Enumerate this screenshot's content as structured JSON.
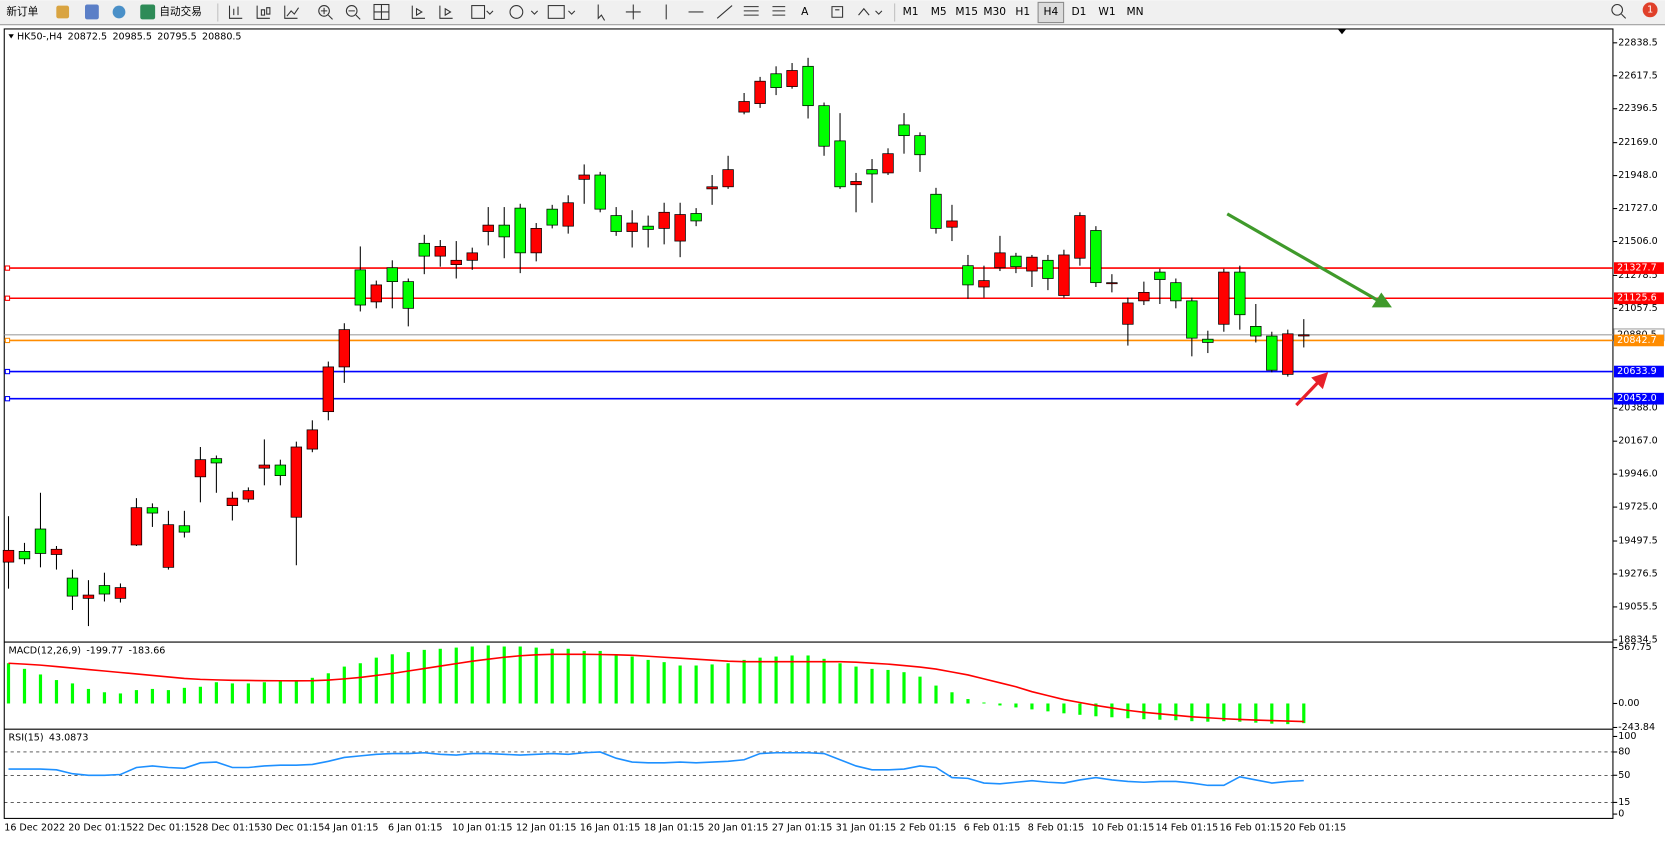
{
  "toolbar": {
    "new_order": "新订单",
    "auto_trading": "自动交易",
    "timeframes": [
      "M1",
      "M5",
      "M15",
      "M30",
      "H1",
      "H4",
      "D1",
      "W1",
      "MN"
    ],
    "active_timeframe": "H4",
    "notifications": 1
  },
  "chart_data": [
    {
      "type": "candlestick",
      "title": "HK50-,H4",
      "x": [
        "16 Dec 2022",
        null,
        null,
        null,
        "20 Dec 01:15",
        null,
        null,
        null,
        "22 Dec 01:15",
        null,
        null,
        null,
        "28 Dec 01:15",
        null,
        null,
        null,
        "30 Dec 01:15",
        null,
        null,
        null,
        "4 Jan 01:15",
        null,
        null,
        null,
        "6 Jan 01:15",
        null,
        null,
        null,
        "10 Jan 01:15",
        null,
        null,
        null,
        "12 Jan 01:15",
        null,
        null,
        null,
        "16 Jan 01:15",
        null,
        null,
        null,
        "18 Jan 01:15",
        null,
        null,
        null,
        "20 Jan 01:15",
        null,
        null,
        null,
        "27 Jan 01:15",
        null,
        null,
        null,
        "31 Jan 01:15",
        null,
        null,
        null,
        "2 Feb 01:15",
        null,
        null,
        null,
        "6 Feb 01:15",
        null,
        null,
        null,
        "8 Feb 01:15",
        null,
        null,
        null,
        "10 Feb 01:15",
        null,
        null,
        null,
        "14 Feb 01:15",
        null,
        null,
        null,
        "16 Feb 01:15",
        null,
        null,
        null,
        "20 Feb 01:15",
        null
      ],
      "open": [
        19356,
        19428,
        19578,
        19407,
        19249,
        19113,
        19199,
        19113,
        19471,
        19721,
        19321,
        19600,
        19928,
        20050,
        19735,
        19778,
        19986,
        20007,
        19657,
        20114,
        20365,
        20665,
        21316,
        21101,
        21330,
        21237,
        21494,
        21408,
        21351,
        21380,
        21573,
        21616,
        21730,
        21430,
        21723,
        21609,
        21923,
        21952,
        21680,
        21573,
        21609,
        21594,
        21509,
        21694,
        21859,
        21873,
        22374,
        22431,
        22631,
        22545,
        22681,
        22417,
        22181,
        21887,
        21988,
        21966,
        22288,
        22216,
        21823,
        21602,
        21344,
        21201,
        21330,
        21408,
        21308,
        21380,
        21144,
        21394,
        21580,
        21223,
        20951,
        21108,
        21301,
        21230,
        21108,
        20851,
        20951,
        21301,
        20937,
        20872,
        20615,
        20872.5
      ],
      "high": [
        19664,
        19485,
        19821,
        19464,
        19306,
        19235,
        19285,
        19213,
        19785,
        19750,
        19700,
        19700,
        20128,
        20071,
        19828,
        19857,
        20179,
        20043,
        20164,
        20307,
        20701,
        20958,
        21473,
        21244,
        21380,
        21258,
        21551,
        21516,
        21509,
        21465,
        21737,
        21737,
        21759,
        21630,
        21752,
        21816,
        22023,
        21973,
        21737,
        21716,
        21680,
        21766,
        21766,
        21730,
        21952,
        22081,
        22502,
        22610,
        22681,
        22703,
        22738,
        22438,
        22367,
        21966,
        22059,
        22131,
        22367,
        22238,
        21866,
        21752,
        21416,
        21344,
        21544,
        21430,
        21416,
        21416,
        21451,
        21702,
        21609,
        21287,
        21130,
        21237,
        21323,
        21258,
        21130,
        20908,
        21323,
        21344,
        21087,
        20901,
        20915,
        20985.5
      ],
      "low": [
        19178,
        19342,
        19321,
        19306,
        19035,
        18927,
        19092,
        19085,
        19464,
        19592,
        19306,
        19521,
        19757,
        19821,
        19635,
        19757,
        19871,
        19871,
        19335,
        20093,
        20307,
        20558,
        21037,
        21058,
        21058,
        20937,
        21287,
        21337,
        21258,
        21316,
        21480,
        21394,
        21294,
        21373,
        21594,
        21559,
        21759,
        21702,
        21544,
        21466,
        21466,
        21487,
        21401,
        21609,
        21752,
        21859,
        22359,
        22402,
        22488,
        22531,
        22331,
        22081,
        21859,
        21702,
        21766,
        21952,
        22095,
        21973,
        21559,
        21509,
        21122,
        21130,
        21308,
        21294,
        21201,
        21180,
        21130,
        21344,
        21201,
        21165,
        20808,
        21080,
        21087,
        21058,
        20736,
        20758,
        20901,
        20915,
        20829,
        20629,
        20600,
        20795.5
      ],
      "close": [
        19435,
        19378,
        19414,
        19442,
        19128,
        19135,
        19142,
        19185,
        19721,
        19685,
        19607,
        19557,
        20043,
        20021,
        19785,
        19835,
        20007,
        19936,
        20128,
        20243,
        20665,
        20915,
        21080,
        21215,
        21237,
        21058,
        21408,
        21473,
        21380,
        21430,
        21616,
        21537,
        21430,
        21594,
        21616,
        21766,
        21952,
        21723,
        21573,
        21630,
        21587,
        21702,
        21687,
        21644,
        21873,
        21988,
        22445,
        22581,
        22538,
        22653,
        22417,
        22145,
        21873,
        21909,
        21959,
        22095,
        22216,
        22088,
        21594,
        21644,
        21215,
        21244,
        21430,
        21337,
        21401,
        21258,
        21416,
        21680,
        21230,
        21230,
        21094,
        21165,
        21251,
        21108,
        20858,
        20829,
        21301,
        21015,
        20872,
        20643,
        20887,
        20880.5
      ],
      "up_color": "#ff0000",
      "down_color": "#00ff00",
      "bid_color": "#a0a0a0",
      "ylim": [
        18820,
        22931.5
      ],
      "yticks": [
        22838.5,
        22617.5,
        22396.5,
        {
          "value": 22169,
          "label": "22169.0"
        },
        {
          "value": 21948,
          "label": "21948.0"
        },
        {
          "value": 21727,
          "label": "21727.0"
        },
        {
          "value": 21506,
          "label": "21506.0"
        },
        21278.5,
        21057.5,
        {
          "value": 20388,
          "label": "20388.0"
        },
        {
          "value": 20167,
          "label": "20167.0"
        },
        {
          "value": 19946,
          "label": "19946.0"
        },
        {
          "value": 19725,
          "label": "19725.0"
        },
        19497.5,
        19276.5,
        19055.5,
        18834.5
      ],
      "hlines": [
        {
          "value": 21327.7,
          "color": "#ff0000"
        },
        {
          "value": 21125.6,
          "color": "#ff0000"
        },
        {
          "value": 20842.7,
          "color": "#ff8c00"
        },
        {
          "value": 20633.9,
          "color": "#0000ff"
        },
        {
          "value": 20452,
          "label": "20452.0",
          "color": "#0000ff"
        }
      ]
    },
    {
      "type": "macd",
      "title": "MACD(12,26,9)",
      "values": [
        409,
        352,
        295,
        238,
        204,
        148,
        114,
        102,
        136,
        148,
        136,
        159,
        170,
        216,
        204,
        204,
        216,
        227,
        227,
        261,
        307,
        375,
        409,
        466,
        500,
        522,
        545,
        556,
        568,
        579,
        590,
        579,
        579,
        568,
        556,
        556,
        534,
        534,
        500,
        477,
        443,
        420,
        386,
        386,
        397,
        409,
        443,
        466,
        477,
        488,
        488,
        454,
        409,
        375,
        352,
        341,
        318,
        273,
        182,
        114,
        45,
        10,
        -20,
        -40,
        -60,
        -80,
        -100,
        -115,
        -130,
        -140,
        -150,
        -160,
        -165,
        -170,
        -180,
        -185,
        -180,
        -185,
        -195,
        -205,
        -210,
        -199.77
      ],
      "color": "#00ff00",
      "signal": [
        409,
        400,
        390,
        375,
        360,
        345,
        330,
        315,
        300,
        285,
        270,
        255,
        245,
        240,
        236,
        234,
        232,
        231,
        230,
        232,
        238,
        250,
        265,
        285,
        305,
        330,
        355,
        380,
        405,
        430,
        450,
        470,
        485,
        495,
        500,
        500,
        500,
        498,
        495,
        490,
        480,
        470,
        460,
        450,
        440,
        430,
        425,
        425,
        425,
        425,
        425,
        425,
        425,
        420,
        410,
        400,
        385,
        370,
        350,
        320,
        290,
        250,
        210,
        170,
        120,
        80,
        40,
        10,
        -20,
        -45,
        -70,
        -90,
        -105,
        -120,
        -135,
        -145,
        -155,
        -162,
        -168,
        -174,
        -179,
        -183.66
      ],
      "signal_color": "#ff0000",
      "ylim": [
        -261,
        624.5
      ],
      "yticks": [
        567.75,
        {
          "value": 0,
          "label": "0.00"
        },
        -243.84
      ]
    },
    {
      "type": "line",
      "title": "RSI(15)",
      "values": [
        58,
        58,
        58,
        57,
        52,
        50,
        50,
        51,
        60,
        62,
        60,
        59,
        66,
        67,
        60,
        60,
        62,
        63,
        63,
        64,
        68,
        73,
        75,
        77,
        78,
        78,
        79,
        77,
        76,
        78,
        78,
        77,
        76,
        77,
        78,
        77,
        79,
        80,
        72,
        67,
        66,
        66,
        67,
        66,
        67,
        68,
        70,
        78,
        79,
        79,
        79,
        78,
        70,
        62,
        57,
        57,
        58,
        62,
        60,
        47,
        46,
        40,
        39,
        41,
        43,
        41,
        40,
        44,
        47,
        44,
        42,
        41,
        42,
        42,
        40,
        37,
        37,
        48,
        44,
        40,
        42,
        43.0873
      ],
      "color": "#1e90ff",
      "ylim": [
        -5.6,
        109.4
      ],
      "yticks": [
        100,
        80,
        50,
        15,
        0
      ]
    }
  ]
}
